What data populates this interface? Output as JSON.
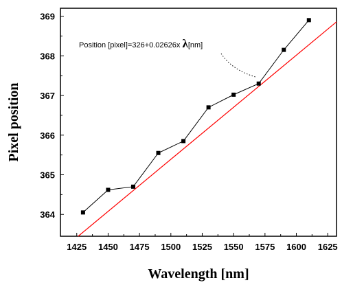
{
  "chart_data": {
    "type": "scatter",
    "title": "",
    "xlabel": "Wavelength [nm]",
    "ylabel": "Pixel position",
    "xlim": [
      1412,
      1632
    ],
    "ylim": [
      363.45,
      369.2
    ],
    "x_ticks": [
      1425,
      1450,
      1475,
      1500,
      1525,
      1550,
      1575,
      1600,
      1625
    ],
    "y_ticks": [
      364,
      365,
      366,
      367,
      368,
      369
    ],
    "grid": false,
    "series": [
      {
        "x": [
          1430,
          1450,
          1470,
          1490,
          1510,
          1530,
          1550,
          1570,
          1590,
          1610
        ],
        "values": [
          364.05,
          364.62,
          364.7,
          365.55,
          365.85,
          366.7,
          367.02,
          367.3,
          368.15,
          368.9
        ],
        "color": "#000000",
        "marker": "square"
      }
    ],
    "fit_line": {
      "intercept": 326,
      "slope": 0.02626,
      "color": "#ff0000"
    },
    "annotation": {
      "text_prefix": "Position [pixel]=326+0.02626x ",
      "symbol": "λ",
      "text_suffix": "[nm]"
    }
  }
}
